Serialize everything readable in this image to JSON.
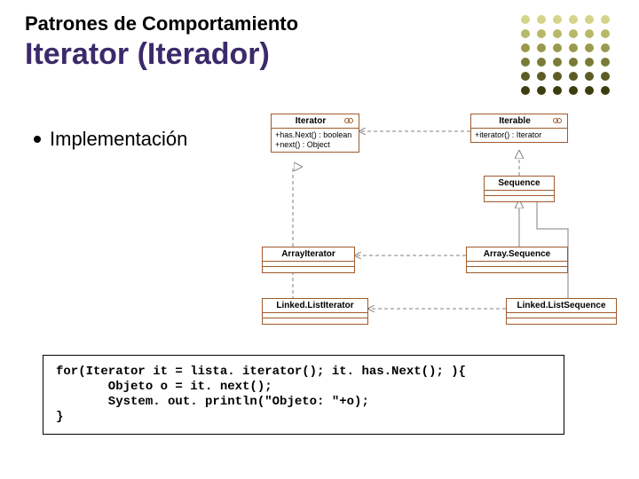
{
  "header": {
    "subtitle": "Patrones de Comportamiento",
    "title": "Iterator (Iterador)"
  },
  "bullet": {
    "text": "Implementación"
  },
  "uml": {
    "iterator": {
      "title": "Iterator",
      "ops": "+has.Next() : boolean\n+next() : Object"
    },
    "iterable": {
      "title": "Iterable",
      "ops": "+iterator() : Iterator"
    },
    "sequence": {
      "title": "Sequence"
    },
    "arrayIterator": {
      "title": "ArrayIterator"
    },
    "linkedListIterator": {
      "title": "Linked.ListIterator"
    },
    "arraySequence": {
      "title": "Array.Sequence"
    },
    "linkedListSequence": {
      "title": "Linked.ListSequence"
    }
  },
  "colors": {
    "boxBorder": "#a05a2c",
    "titleColor": "#3b2a6b",
    "line": "#808080"
  },
  "code": {
    "line1": "for(Iterator it = lista. iterator(); it. has.Next(); ){",
    "line2": "       Objeto o = it. next();",
    "line3": "       System. out. println(\"Objeto: \"+o);",
    "line4": "}"
  },
  "decoration": {
    "rows": [
      {
        "y": 0,
        "colors": [
          "#d4d48a",
          "#d4d48a",
          "#d4d48a",
          "#d4d48a",
          "#d4d48a",
          "#d4d48a"
        ]
      },
      {
        "y": 16,
        "colors": [
          "#b8b86a",
          "#b8b86a",
          "#b8b86a",
          "#b8b86a",
          "#b8b86a",
          "#b8b86a"
        ]
      },
      {
        "y": 32,
        "colors": [
          "#9a9a4f",
          "#9a9a4f",
          "#9a9a4f",
          "#9a9a4f",
          "#9a9a4f",
          "#9a9a4f"
        ]
      },
      {
        "y": 48,
        "colors": [
          "#7b7b38",
          "#7b7b38",
          "#7b7b38",
          "#7b7b38",
          "#7b7b38",
          "#7b7b38"
        ]
      },
      {
        "y": 64,
        "colors": [
          "#5c5c24",
          "#5c5c24",
          "#5c5c24",
          "#5c5c24",
          "#5c5c24",
          "#5c5c24"
        ]
      },
      {
        "y": 80,
        "colors": [
          "#3d3d12",
          "#3d3d12",
          "#3d3d12",
          "#3d3d12",
          "#3d3d12",
          "#3d3d12"
        ]
      }
    ]
  }
}
